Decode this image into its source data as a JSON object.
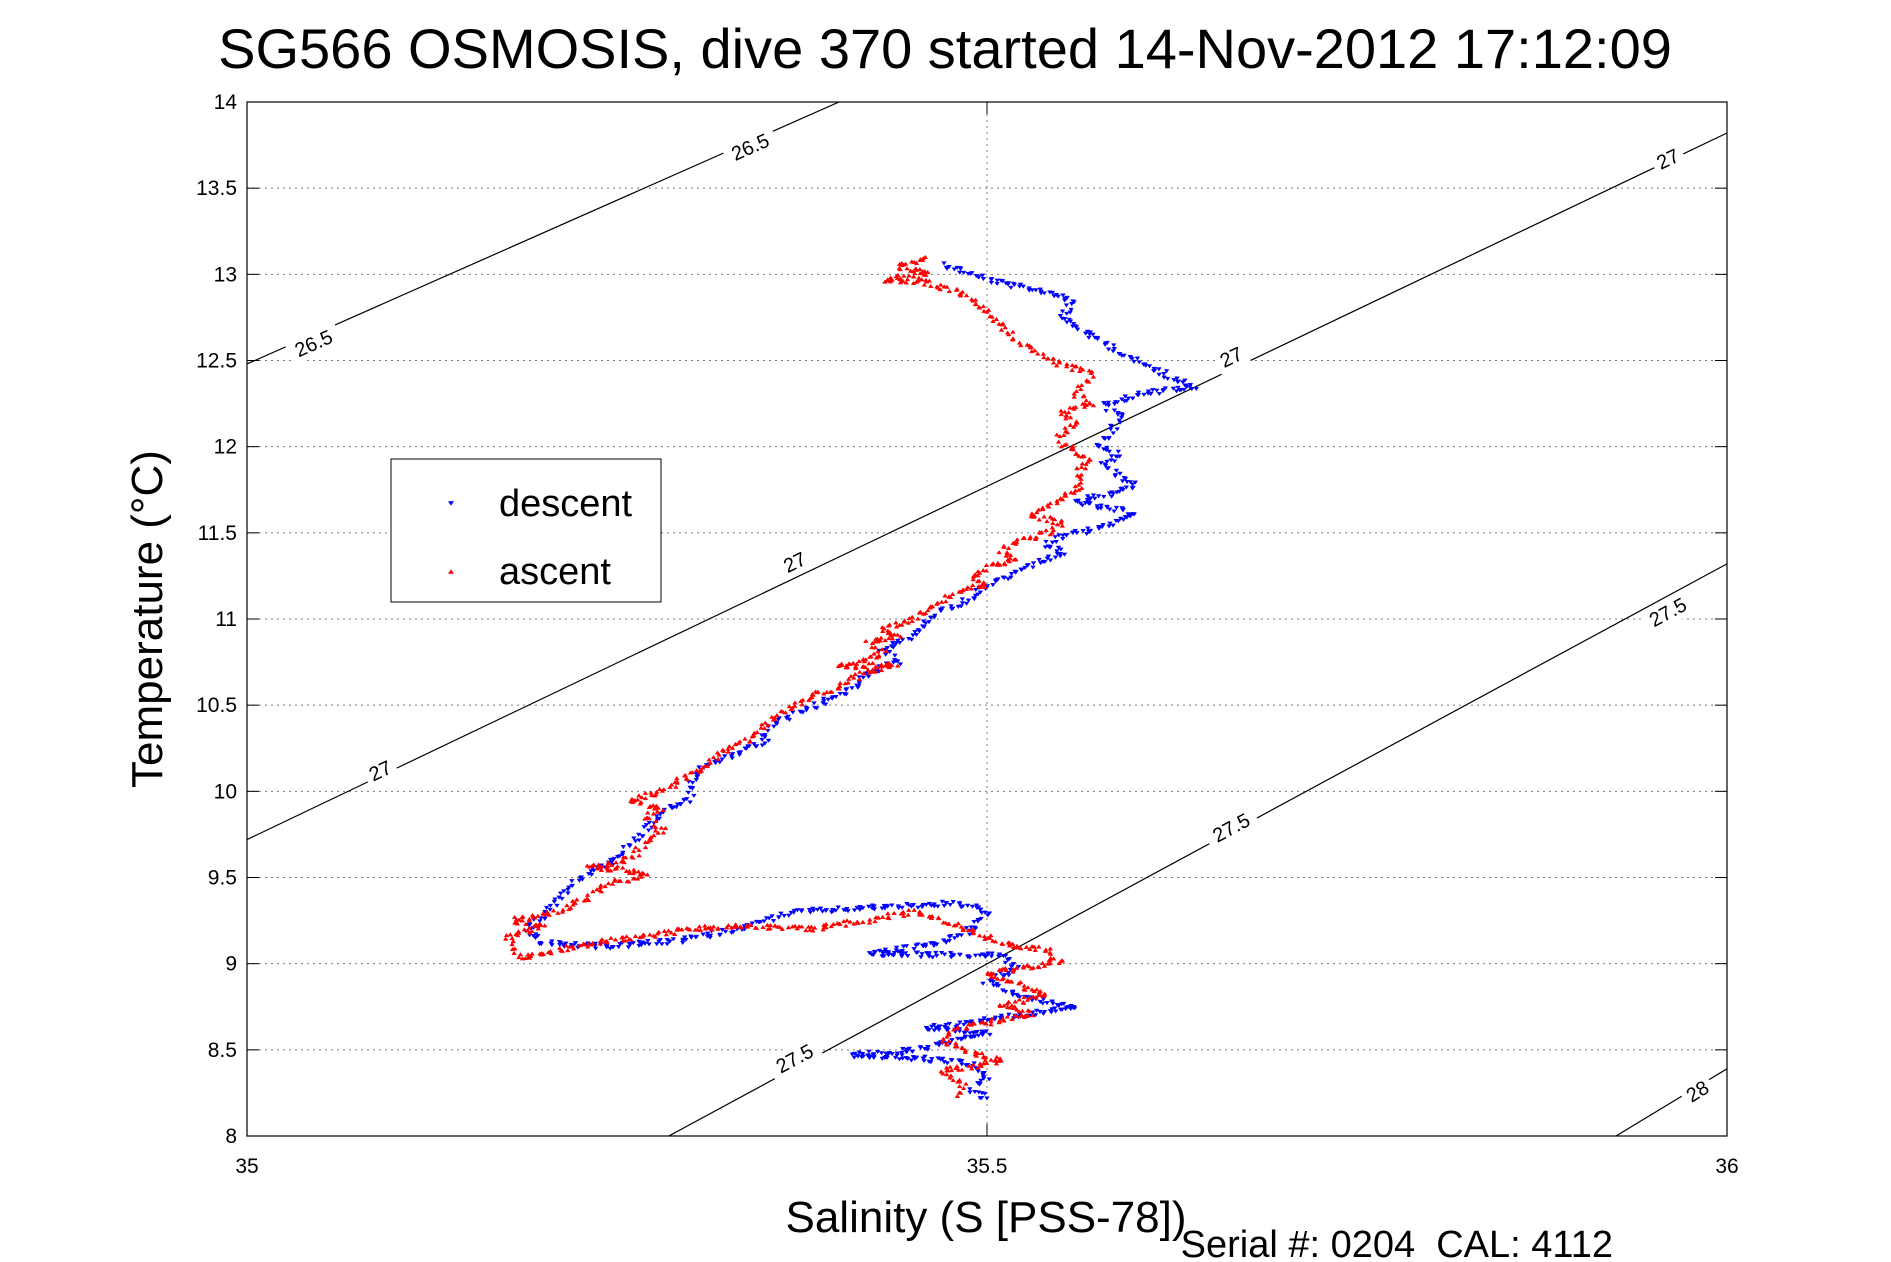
{
  "chart_data": {
    "type": "scatter",
    "title": "SG566 OSMOSIS, dive 370 started 14-Nov-2012 17:12:09",
    "xlabel": "Salinity (S [PSS-78])",
    "ylabel": "Temperature (°C)",
    "footer": "Serial #: 0204  CAL: 4112",
    "xlim": [
      35,
      36
    ],
    "ylim": [
      8,
      14
    ],
    "xticks": [
      35,
      35.5,
      36
    ],
    "xtick_labels": [
      "35",
      "35.5",
      "36"
    ],
    "yticks": [
      8,
      8.5,
      9,
      9.5,
      10,
      10.5,
      11,
      11.5,
      12,
      12.5,
      13,
      13.5,
      14
    ],
    "ytick_labels": [
      "8",
      "8.5",
      "9",
      "9.5",
      "10",
      "10.5",
      "11",
      "11.5",
      "12",
      "12.5",
      "13",
      "13.5",
      "14"
    ],
    "grid": true,
    "legend": "center-left",
    "density_contours": [
      {
        "value": "26.5",
        "points": [
          [
            35,
            12.48
          ],
          [
            35.4,
            14.0
          ]
        ]
      },
      {
        "value": "27",
        "points": [
          [
            35,
            9.72
          ],
          [
            36,
            13.82
          ]
        ]
      },
      {
        "value": "27.5",
        "points": [
          [
            35.285,
            8.0
          ],
          [
            36,
            11.32
          ]
        ]
      },
      {
        "value": "28",
        "points": [
          [
            35.925,
            8.0
          ],
          [
            36,
            8.39
          ]
        ]
      }
    ],
    "contour_labels": [
      {
        "text": "26.5",
        "x": 35.34,
        "y": 13.74
      },
      {
        "text": "26.5",
        "x": 35.045,
        "y": 12.6
      },
      {
        "text": "27",
        "x": 35.96,
        "y": 13.67
      },
      {
        "text": "27",
        "x": 35.665,
        "y": 12.52
      },
      {
        "text": "27",
        "x": 35.37,
        "y": 11.33
      },
      {
        "text": "27",
        "x": 35.09,
        "y": 10.12
      },
      {
        "text": "27.5",
        "x": 35.96,
        "y": 11.04
      },
      {
        "text": "27.5",
        "x": 35.665,
        "y": 9.79
      },
      {
        "text": "27.5",
        "x": 35.37,
        "y": 8.45
      },
      {
        "text": "28",
        "x": 35.98,
        "y": 8.26
      }
    ],
    "series": [
      {
        "name": "descent",
        "color": "#0000ff",
        "marker": "triangle-down",
        "path": [
          [
            35.47,
            13.06
          ],
          [
            35.49,
            13.0
          ],
          [
            35.5,
            12.97
          ],
          [
            35.52,
            12.93
          ],
          [
            35.54,
            12.9
          ],
          [
            35.56,
            12.85
          ],
          [
            35.55,
            12.75
          ],
          [
            35.58,
            12.6
          ],
          [
            35.6,
            12.5
          ],
          [
            35.62,
            12.42
          ],
          [
            35.64,
            12.35
          ],
          [
            35.6,
            12.3
          ],
          [
            35.58,
            12.24
          ],
          [
            35.59,
            12.18
          ],
          [
            35.585,
            12.1
          ],
          [
            35.575,
            12.0
          ],
          [
            35.59,
            11.95
          ],
          [
            35.58,
            11.9
          ],
          [
            35.585,
            11.85
          ],
          [
            35.6,
            11.78
          ],
          [
            35.58,
            11.72
          ],
          [
            35.56,
            11.68
          ],
          [
            35.58,
            11.64
          ],
          [
            35.6,
            11.62
          ],
          [
            35.59,
            11.57
          ],
          [
            35.57,
            11.52
          ],
          [
            35.55,
            11.48
          ],
          [
            35.54,
            11.43
          ],
          [
            35.55,
            11.38
          ],
          [
            35.53,
            11.32
          ],
          [
            35.52,
            11.27
          ],
          [
            35.5,
            11.2
          ],
          [
            35.49,
            11.12
          ],
          [
            35.47,
            11.05
          ],
          [
            35.46,
            10.98
          ],
          [
            35.45,
            10.9
          ],
          [
            35.43,
            10.82
          ],
          [
            35.44,
            10.75
          ],
          [
            35.42,
            10.68
          ],
          [
            35.41,
            10.6
          ],
          [
            35.39,
            10.52
          ],
          [
            35.37,
            10.45
          ],
          [
            35.355,
            10.38
          ],
          [
            35.35,
            10.3
          ],
          [
            35.33,
            10.22
          ],
          [
            35.31,
            10.15
          ],
          [
            35.3,
            10.05
          ],
          [
            35.3,
            9.96
          ],
          [
            35.28,
            9.88
          ],
          [
            35.27,
            9.78
          ],
          [
            35.26,
            9.7
          ],
          [
            35.25,
            9.6
          ],
          [
            35.23,
            9.53
          ],
          [
            35.22,
            9.46
          ],
          [
            35.21,
            9.38
          ],
          [
            35.2,
            9.28
          ],
          [
            35.19,
            9.2
          ],
          [
            35.2,
            9.12
          ],
          [
            35.24,
            9.1
          ],
          [
            35.29,
            9.13
          ],
          [
            35.33,
            9.2
          ],
          [
            35.37,
            9.3
          ],
          [
            35.43,
            9.33
          ],
          [
            35.48,
            9.35
          ],
          [
            35.5,
            9.3
          ],
          [
            35.49,
            9.2
          ],
          [
            35.47,
            9.12
          ],
          [
            35.42,
            9.06
          ],
          [
            35.47,
            9.05
          ],
          [
            35.51,
            9.05
          ],
          [
            35.52,
            8.97
          ],
          [
            35.5,
            8.9
          ],
          [
            35.52,
            8.82
          ],
          [
            35.54,
            8.78
          ],
          [
            35.56,
            8.75
          ],
          [
            35.52,
            8.7
          ],
          [
            35.49,
            8.66
          ],
          [
            35.46,
            8.63
          ],
          [
            35.5,
            8.6
          ],
          [
            35.48,
            8.55
          ],
          [
            35.45,
            8.5
          ],
          [
            35.41,
            8.47
          ],
          [
            35.44,
            8.46
          ],
          [
            35.47,
            8.44
          ],
          [
            35.49,
            8.42
          ],
          [
            35.5,
            8.35
          ],
          [
            35.49,
            8.27
          ],
          [
            35.5,
            8.22
          ]
        ]
      },
      {
        "name": "ascent",
        "color": "#ff0000",
        "marker": "triangle-up",
        "path": [
          [
            35.46,
            13.1
          ],
          [
            35.44,
            13.04
          ],
          [
            35.46,
            13.0
          ],
          [
            35.43,
            12.97
          ],
          [
            35.46,
            12.95
          ],
          [
            35.48,
            12.9
          ],
          [
            35.5,
            12.8
          ],
          [
            35.51,
            12.7
          ],
          [
            35.52,
            12.62
          ],
          [
            35.53,
            12.55
          ],
          [
            35.55,
            12.48
          ],
          [
            35.57,
            12.42
          ],
          [
            35.565,
            12.35
          ],
          [
            35.56,
            12.3
          ],
          [
            35.57,
            12.25
          ],
          [
            35.55,
            12.2
          ],
          [
            35.56,
            12.14
          ],
          [
            35.55,
            12.08
          ],
          [
            35.55,
            12.02
          ],
          [
            35.56,
            11.97
          ],
          [
            35.57,
            11.92
          ],
          [
            35.56,
            11.86
          ],
          [
            35.565,
            11.8
          ],
          [
            35.56,
            11.75
          ],
          [
            35.55,
            11.7
          ],
          [
            35.54,
            11.65
          ],
          [
            35.53,
            11.6
          ],
          [
            35.55,
            11.56
          ],
          [
            35.54,
            11.5
          ],
          [
            35.52,
            11.45
          ],
          [
            35.51,
            11.4
          ],
          [
            35.52,
            11.35
          ],
          [
            35.5,
            11.3
          ],
          [
            35.49,
            11.25
          ],
          [
            35.5,
            11.2
          ],
          [
            35.48,
            11.15
          ],
          [
            35.47,
            11.1
          ],
          [
            35.46,
            11.05
          ],
          [
            35.45,
            11.0
          ],
          [
            35.43,
            10.95
          ],
          [
            35.44,
            10.9
          ],
          [
            35.42,
            10.86
          ],
          [
            35.43,
            10.8
          ],
          [
            35.41,
            10.75
          ],
          [
            35.4,
            10.72
          ],
          [
            35.44,
            10.74
          ],
          [
            35.41,
            10.66
          ],
          [
            35.4,
            10.6
          ],
          [
            35.38,
            10.55
          ],
          [
            35.37,
            10.5
          ],
          [
            35.36,
            10.45
          ],
          [
            35.35,
            10.38
          ],
          [
            35.34,
            10.3
          ],
          [
            35.32,
            10.22
          ],
          [
            35.31,
            10.15
          ],
          [
            35.3,
            10.1
          ],
          [
            35.29,
            10.05
          ],
          [
            35.28,
            10.0
          ],
          [
            35.26,
            9.95
          ],
          [
            35.28,
            9.9
          ],
          [
            35.27,
            9.85
          ],
          [
            35.28,
            9.78
          ],
          [
            35.27,
            9.7
          ],
          [
            35.26,
            9.62
          ],
          [
            35.25,
            9.58
          ],
          [
            35.23,
            9.56
          ],
          [
            35.25,
            9.55
          ],
          [
            35.27,
            9.52
          ],
          [
            35.24,
            9.45
          ],
          [
            35.23,
            9.38
          ],
          [
            35.21,
            9.3
          ],
          [
            35.18,
            9.25
          ],
          [
            35.2,
            9.22
          ],
          [
            35.175,
            9.15
          ],
          [
            35.18,
            9.08
          ],
          [
            35.185,
            9.03
          ],
          [
            35.22,
            9.1
          ],
          [
            35.26,
            9.15
          ],
          [
            35.3,
            9.2
          ],
          [
            35.34,
            9.22
          ],
          [
            35.38,
            9.2
          ],
          [
            35.42,
            9.25
          ],
          [
            35.45,
            9.3
          ],
          [
            35.48,
            9.22
          ],
          [
            35.5,
            9.15
          ],
          [
            35.52,
            9.1
          ],
          [
            35.54,
            9.08
          ],
          [
            35.55,
            9.02
          ],
          [
            35.53,
            8.98
          ],
          [
            35.5,
            8.94
          ],
          [
            35.52,
            8.88
          ],
          [
            35.54,
            8.82
          ],
          [
            35.51,
            8.76
          ],
          [
            35.53,
            8.7
          ],
          [
            35.5,
            8.66
          ],
          [
            35.48,
            8.62
          ],
          [
            35.47,
            8.55
          ],
          [
            35.49,
            8.48
          ],
          [
            35.51,
            8.44
          ],
          [
            35.49,
            8.4
          ],
          [
            35.47,
            8.38
          ],
          [
            35.485,
            8.3
          ],
          [
            35.48,
            8.23
          ]
        ]
      }
    ]
  }
}
